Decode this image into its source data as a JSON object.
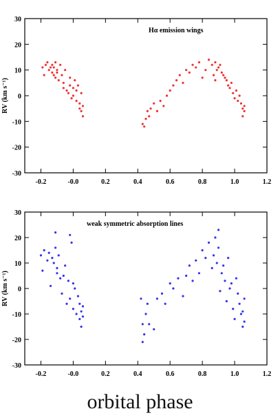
{
  "figure": {
    "xlabel": "orbital phase"
  },
  "chart_data": [
    {
      "type": "scatter",
      "annotation": "Hα emission wings",
      "ylabel": "RV (km s⁻¹)",
      "xlabel": "",
      "xlim": [
        -0.3,
        1.2
      ],
      "ylim": [
        -30,
        30
      ],
      "xticks": [
        "-0.2",
        "-0.0",
        "0.2",
        "0.4",
        "0.6",
        "0.8",
        "1.0",
        "1.2"
      ],
      "yticks": [
        "30",
        "20",
        "10",
        "0",
        "-10",
        "-20",
        "-30"
      ],
      "xtick_values": [
        -0.2,
        0.0,
        0.2,
        0.4,
        0.6,
        0.8,
        1.0,
        1.2
      ],
      "ytick_values": [
        30,
        20,
        10,
        0,
        -10,
        -20,
        -30
      ],
      "color": "#ee3333",
      "series": [
        {
          "x": [
            -0.19,
            -0.18,
            -0.17,
            -0.16,
            -0.15,
            -0.14,
            -0.13,
            -0.13,
            -0.12,
            -0.12,
            -0.11,
            -0.11,
            -0.1,
            -0.1,
            -0.09,
            -0.08,
            -0.07,
            -0.06,
            -0.06,
            -0.05,
            -0.04,
            -0.03,
            -0.02,
            -0.02,
            -0.01,
            0.0,
            0.0,
            0.01,
            0.02,
            0.02,
            0.03,
            0.04,
            0.04,
            0.05,
            0.05,
            0.06,
            0.06,
            0.43,
            0.44,
            0.45,
            0.46,
            0.47,
            0.48,
            0.5,
            0.52,
            0.54,
            0.56,
            0.58,
            0.6,
            0.62,
            0.64,
            0.66,
            0.68,
            0.7,
            0.72,
            0.74,
            0.76,
            0.78,
            0.8,
            0.82,
            0.84,
            0.86,
            0.87,
            0.88,
            0.88,
            0.89,
            0.9,
            0.91,
            0.92,
            0.93,
            0.94,
            0.95,
            0.96,
            0.97,
            0.98,
            0.99,
            1.0,
            1.01,
            1.02,
            1.03,
            1.04,
            1.05,
            1.05,
            1.06,
            1.06
          ],
          "y": [
            11,
            8,
            12,
            13,
            10,
            11,
            9,
            12,
            8,
            11,
            13,
            7,
            10,
            9,
            6,
            12,
            8,
            5,
            3,
            10,
            2,
            1,
            7,
            4,
            -1,
            3,
            0,
            6,
            2,
            -2,
            4,
            -3,
            -5,
            1,
            -6,
            -4,
            -8,
            -11,
            -12,
            -9,
            -6,
            -8,
            -5,
            -3,
            -6,
            -2,
            -4,
            0,
            2,
            4,
            6,
            8,
            5,
            10,
            9,
            12,
            11,
            13,
            7,
            10,
            14,
            12,
            8,
            6,
            13,
            10,
            11,
            12,
            9,
            8,
            7,
            6,
            4,
            3,
            5,
            1,
            -1,
            2,
            -2,
            0,
            -3,
            -5,
            -8,
            -6,
            -4
          ]
        }
      ]
    },
    {
      "type": "scatter",
      "annotation": "weak symmetric absorption lines",
      "ylabel": "RV (km s⁻¹)",
      "xlabel": "",
      "xlim": [
        -0.3,
        1.2
      ],
      "ylim": [
        -30,
        30
      ],
      "xticks": [
        "-0.2",
        "-0.0",
        "0.2",
        "0.4",
        "0.6",
        "0.8",
        "1.0",
        "1.2"
      ],
      "yticks": [
        "30",
        "20",
        "10",
        "0",
        "-10",
        "-20",
        "-30"
      ],
      "xtick_values": [
        -0.2,
        0.0,
        0.2,
        0.4,
        0.6,
        0.8,
        1.0,
        1.2
      ],
      "ytick_values": [
        30,
        20,
        10,
        0,
        -10,
        -20,
        -30
      ],
      "color": "#3333ee",
      "series": [
        {
          "x": [
            -0.2,
            -0.19,
            -0.18,
            -0.16,
            -0.15,
            -0.14,
            -0.13,
            -0.12,
            -0.11,
            -0.11,
            -0.1,
            -0.1,
            -0.09,
            -0.08,
            -0.07,
            -0.06,
            -0.05,
            -0.04,
            -0.03,
            -0.02,
            -0.02,
            -0.01,
            0.0,
            0.0,
            0.01,
            0.02,
            0.03,
            0.04,
            0.04,
            0.05,
            0.05,
            0.06,
            0.06,
            0.42,
            0.43,
            0.43,
            0.44,
            0.45,
            0.46,
            0.47,
            0.5,
            0.52,
            0.55,
            0.57,
            0.6,
            0.62,
            0.65,
            0.68,
            0.7,
            0.72,
            0.74,
            0.76,
            0.78,
            0.8,
            0.82,
            0.84,
            0.86,
            0.87,
            0.88,
            0.89,
            0.9,
            0.9,
            0.91,
            0.92,
            0.93,
            0.94,
            0.95,
            0.96,
            0.97,
            0.98,
            0.99,
            1.0,
            1.01,
            1.02,
            1.03,
            1.04,
            1.05,
            1.05,
            1.06,
            1.06
          ],
          "y": [
            13,
            7,
            15,
            11,
            14,
            1,
            12,
            10,
            22,
            16,
            6,
            8,
            13,
            4,
            -2,
            5,
            9,
            -6,
            3,
            21,
            -4,
            18,
            -8,
            2,
            0,
            -10,
            -3,
            -12,
            -6,
            -15,
            -9,
            -7,
            -11,
            -4,
            -14,
            -21,
            -18,
            -10,
            -6,
            -14,
            -16,
            -4,
            -2,
            -6,
            2,
            0,
            4,
            -3,
            5,
            9,
            3,
            11,
            6,
            15,
            12,
            18,
            8,
            13,
            20,
            10,
            23,
            16,
            -1,
            6,
            9,
            3,
            -5,
            12,
            0,
            2,
            -8,
            -12,
            4,
            -2,
            -6,
            -10,
            -15,
            -9,
            -4,
            -13
          ]
        }
      ]
    }
  ]
}
